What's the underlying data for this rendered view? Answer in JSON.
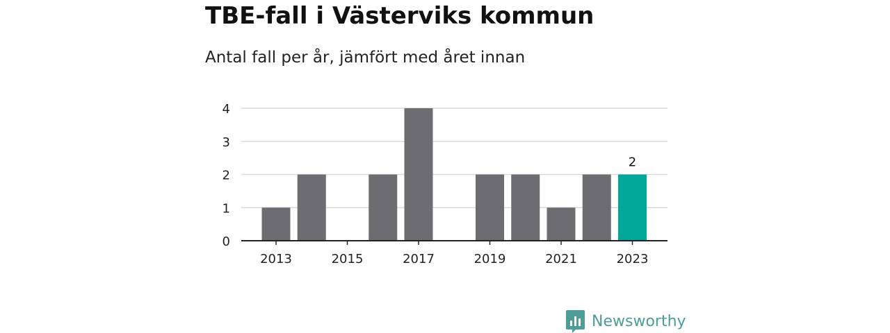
{
  "title": "TBE-fall i Västerviks kommun",
  "subtitle": "Antal fall per år, jämfört med året innan",
  "brand": {
    "name": "Newsworthy",
    "logo_icon": "bar-chart-speech-icon",
    "color": "#4d9d98"
  },
  "chart_data": {
    "type": "bar",
    "categories": [
      "2013",
      "2014",
      "2015",
      "2016",
      "2017",
      "2018",
      "2019",
      "2020",
      "2021",
      "2022",
      "2023"
    ],
    "values": [
      1,
      2,
      0,
      2,
      4,
      0,
      2,
      2,
      1,
      2,
      2
    ],
    "x_tick_labels": [
      "2013",
      "2015",
      "2017",
      "2019",
      "2021",
      "2023"
    ],
    "y_ticks": [
      0,
      1,
      2,
      3,
      4
    ],
    "ylim": [
      0,
      4
    ],
    "grid": true,
    "highlight_index": 10,
    "highlight_label": "2",
    "colors": {
      "bar": "#6d6c71",
      "highlight": "#00a698",
      "grid": "#d9d9d9",
      "axis": "#222222"
    }
  }
}
